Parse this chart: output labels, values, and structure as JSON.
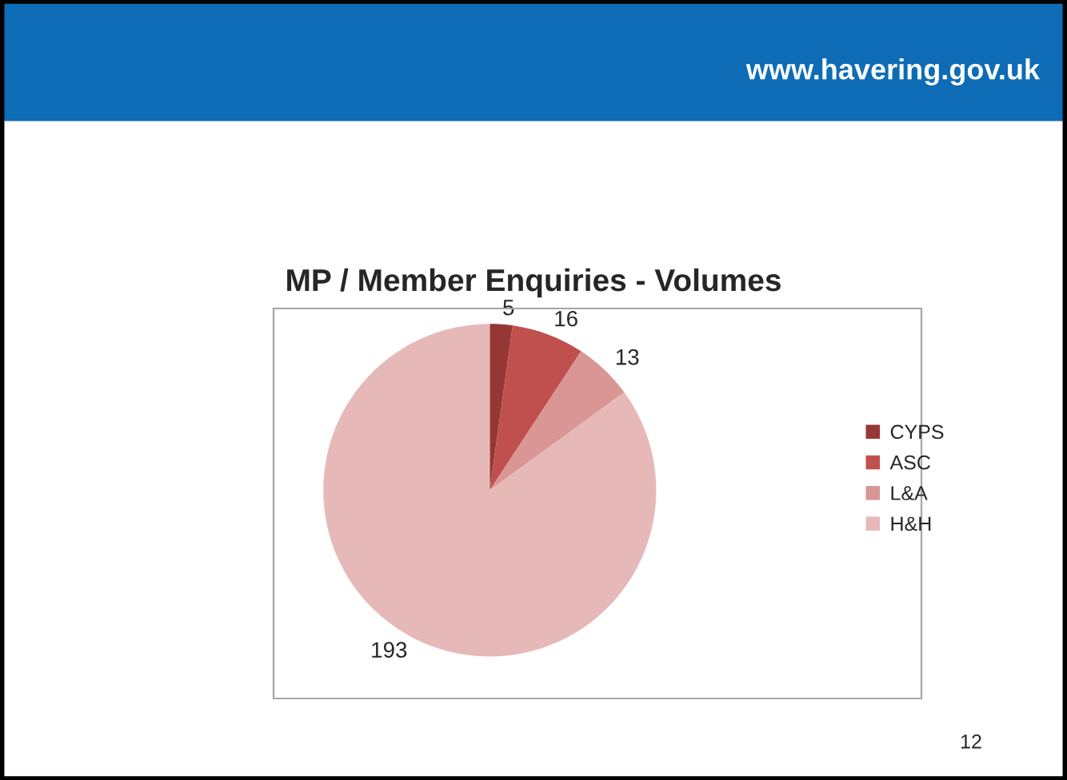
{
  "chart_data": {
    "type": "pie",
    "title": "MP / Member Enquiries - Volumes",
    "categories": [
      "CYPS",
      "ASC",
      "L&A",
      "H&H"
    ],
    "values": [
      5,
      16,
      13,
      193
    ],
    "colors": [
      "#953735",
      "#c0504d",
      "#d99694",
      "#e6b9b8"
    ],
    "data_labels": true,
    "legend": "right",
    "annotations": [
      "www.havering.gov.uk",
      "12"
    ]
  }
}
